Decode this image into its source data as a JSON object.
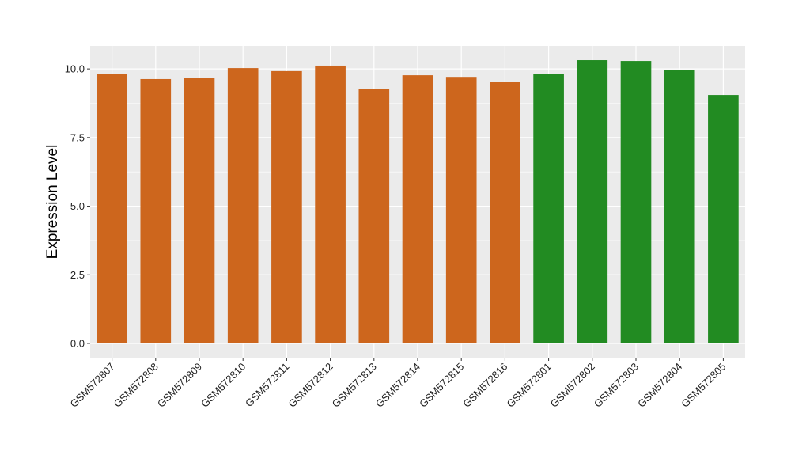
{
  "chart_data": {
    "type": "bar",
    "title": "",
    "xlabel": "",
    "ylabel": "Expression Level",
    "ylim": [
      -0.52,
      10.84
    ],
    "yticks": [
      "0.0",
      "2.5",
      "5.0",
      "7.5",
      "10.0"
    ],
    "grid": true,
    "legend": "none",
    "categories": [
      "GSM572807",
      "GSM572808",
      "GSM572809",
      "GSM572810",
      "GSM572811",
      "GSM572812",
      "GSM572813",
      "GSM572814",
      "GSM572815",
      "GSM572816",
      "GSM572801",
      "GSM572802",
      "GSM572803",
      "GSM572804",
      "GSM572805"
    ],
    "values": [
      9.83,
      9.63,
      9.66,
      10.03,
      9.92,
      10.12,
      9.28,
      9.77,
      9.71,
      9.54,
      9.83,
      10.32,
      10.29,
      9.97,
      9.05
    ],
    "bar_colors": [
      "#cd661d",
      "#cd661d",
      "#cd661d",
      "#cd661d",
      "#cd661d",
      "#cd661d",
      "#cd661d",
      "#cd661d",
      "#cd661d",
      "#cd661d",
      "#228b22",
      "#228b22",
      "#228b22",
      "#228b22",
      "#228b22"
    ],
    "panel_background": "#ebebeb",
    "gridline_color": "#ffffff"
  }
}
